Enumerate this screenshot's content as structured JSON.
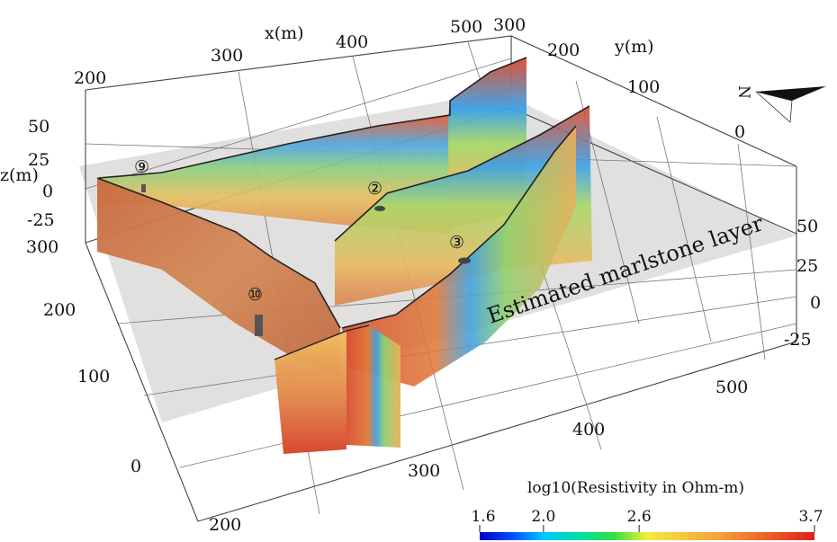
{
  "axes": {
    "x": {
      "label": "x(m)",
      "ticks": [
        "200",
        "300",
        "400",
        "500"
      ]
    },
    "y": {
      "label": "y(m)",
      "ticks": [
        "300",
        "200",
        "100",
        "0"
      ]
    },
    "z": {
      "label": "z(m)",
      "ticks": [
        "50",
        "25",
        "0",
        "-25"
      ]
    },
    "front_x_ticks": [
      "200",
      "300",
      "400",
      "500"
    ],
    "left_y_ticks": [
      "300",
      "200",
      "100",
      "0"
    ],
    "right_z_ticks": [
      "50",
      "25",
      "0",
      "-25"
    ]
  },
  "layer_label": "Estimated marlstone layer",
  "boreholes": [
    {
      "id": "9",
      "label": "⑨"
    },
    {
      "id": "2",
      "label": "②"
    },
    {
      "id": "3",
      "label": "③"
    },
    {
      "id": "10",
      "label": "⑩"
    }
  ],
  "north_arrow": {
    "label": "N",
    "icon": "north-arrow-icon"
  },
  "colorbar": {
    "title": "log10(Resistivity in Ohm-m)",
    "ticks": [
      "1.6",
      "2.0",
      "2.6",
      "3.7"
    ],
    "tick_values": [
      1.6,
      2.0,
      2.6,
      3.7
    ],
    "min": 1.6,
    "max": 3.7,
    "colors": [
      "#0000c8",
      "#00c8ff",
      "#00e676",
      "#f2ec3c",
      "#f5a03a",
      "#e02018"
    ]
  }
}
